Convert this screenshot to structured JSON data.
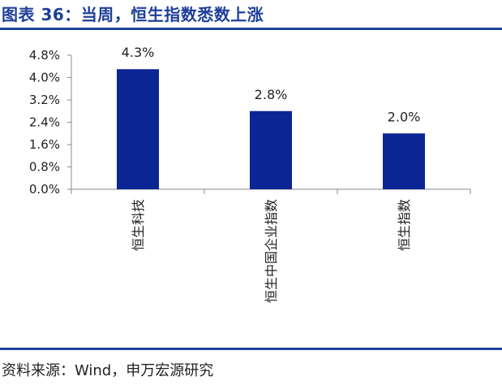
{
  "header": {
    "title": "图表 36：当周，恒生指数悉数上涨"
  },
  "footer": {
    "source": "资料来源：Wind，申万宏源研究"
  },
  "colors": {
    "bar": "#0c2594",
    "accent": "#1f3f99",
    "axis": "#888888"
  },
  "chart_data": {
    "type": "bar",
    "categories": [
      "恒生科技",
      "恒生中国企业指数",
      "恒生指数"
    ],
    "values": [
      4.3,
      2.8,
      2.0
    ],
    "data_labels": [
      "4.3%",
      "2.8%",
      "2.0%"
    ],
    "yticks": [
      "0.0%",
      "0.8%",
      "1.6%",
      "2.4%",
      "3.2%",
      "4.0%",
      "4.8%"
    ],
    "ytick_values": [
      0.0,
      0.8,
      1.6,
      2.4,
      3.2,
      4.0,
      4.8
    ],
    "ylim": [
      0.0,
      4.8
    ],
    "grid": false,
    "legend": "none"
  }
}
